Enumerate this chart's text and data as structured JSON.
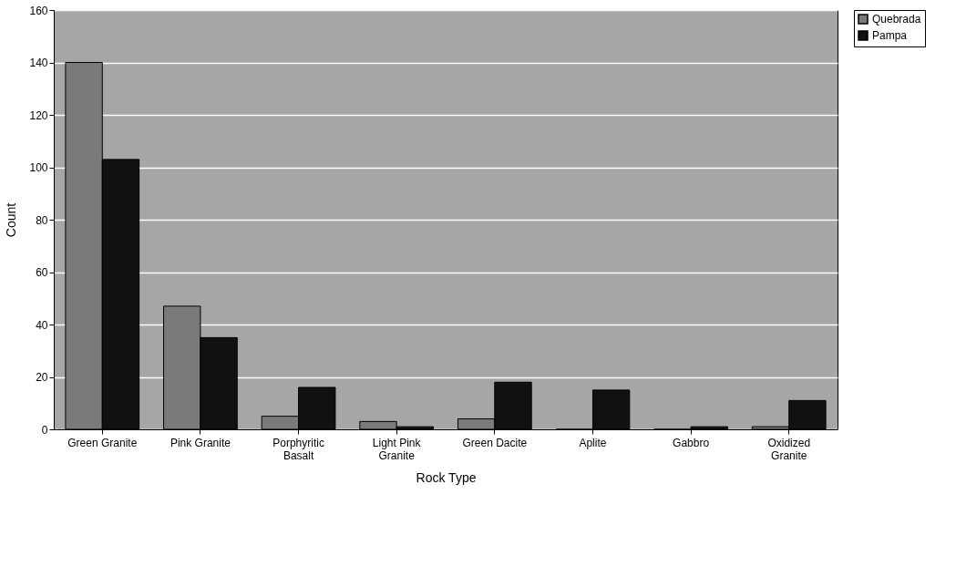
{
  "chart_data": {
    "type": "bar",
    "xlabel": "Rock Type",
    "ylabel": "Count",
    "categories": [
      "Green Granite",
      "Pink Granite",
      "Porphyritic Basalt",
      "Light Pink Granite",
      "Green Dacite",
      "Aplite",
      "Gabbro",
      "Oxidized Granite"
    ],
    "series": [
      {
        "name": "Quebrada",
        "color": "#7a7a7a",
        "values": [
          140,
          47,
          5,
          3,
          4,
          0,
          0,
          1
        ]
      },
      {
        "name": "Pampa",
        "color": "#111111",
        "values": [
          103,
          35,
          16,
          1,
          18,
          15,
          1,
          11
        ]
      }
    ],
    "ylim": [
      0,
      160
    ],
    "yticks": [
      0,
      20,
      40,
      60,
      80,
      100,
      120,
      140,
      160
    ],
    "grid": "y",
    "legend": "right"
  }
}
